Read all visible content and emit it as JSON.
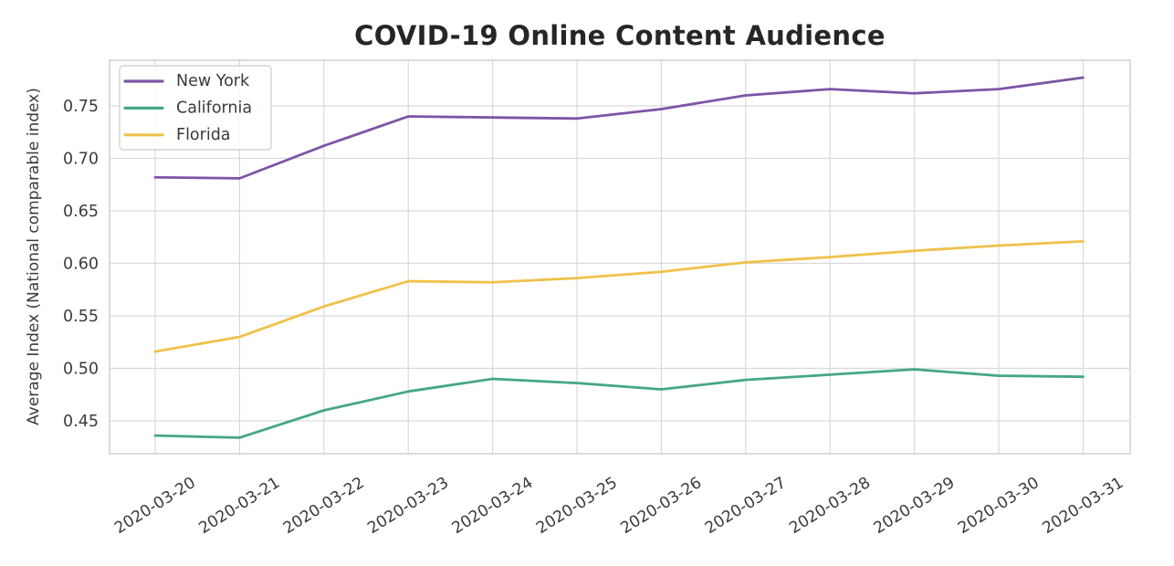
{
  "page": {
    "background": "#ffffff",
    "text_color": "#3b3b3b",
    "title_color": "#262626",
    "grid_color": "#d9d9d9",
    "frame_color": "#c9c9c9",
    "legend_border_color": "#cccccc"
  },
  "chart_data": {
    "type": "line",
    "title": "COVID-19 Online Content Audience",
    "xlabel": "",
    "ylabel": "Average Index (National comparable index)",
    "x": [
      "2020-03-20",
      "2020-03-21",
      "2020-03-22",
      "2020-03-23",
      "2020-03-24",
      "2020-03-25",
      "2020-03-26",
      "2020-03-27",
      "2020-03-28",
      "2020-03-29",
      "2020-03-30",
      "2020-03-31"
    ],
    "series": [
      {
        "name": "New York",
        "color": "#7d55a5",
        "values": [
          0.682,
          0.681,
          0.712,
          0.74,
          0.739,
          0.738,
          0.747,
          0.76,
          0.766,
          0.762,
          0.766,
          0.777
        ]
      },
      {
        "name": "California",
        "color": "#46a688",
        "values": [
          0.436,
          0.434,
          0.46,
          0.478,
          0.49,
          0.486,
          0.48,
          0.489,
          0.494,
          0.499,
          0.493,
          0.492
        ]
      },
      {
        "name": "Florida",
        "color": "#f0c14a",
        "values": [
          0.516,
          0.53,
          0.559,
          0.583,
          0.582,
          0.586,
          0.592,
          0.601,
          0.606,
          0.612,
          0.617,
          0.621
        ]
      }
    ],
    "yticks": [
      0.45,
      0.5,
      0.55,
      0.6,
      0.65,
      0.7,
      0.75
    ],
    "ytick_labels": [
      "0.45",
      "0.50",
      "0.55",
      "0.60",
      "0.65",
      "0.70",
      "0.75"
    ],
    "ylim": [
      0.4187,
      0.7935
    ],
    "grid": true,
    "legend_position": "upper left",
    "x_tick_rotation_deg": 32
  }
}
